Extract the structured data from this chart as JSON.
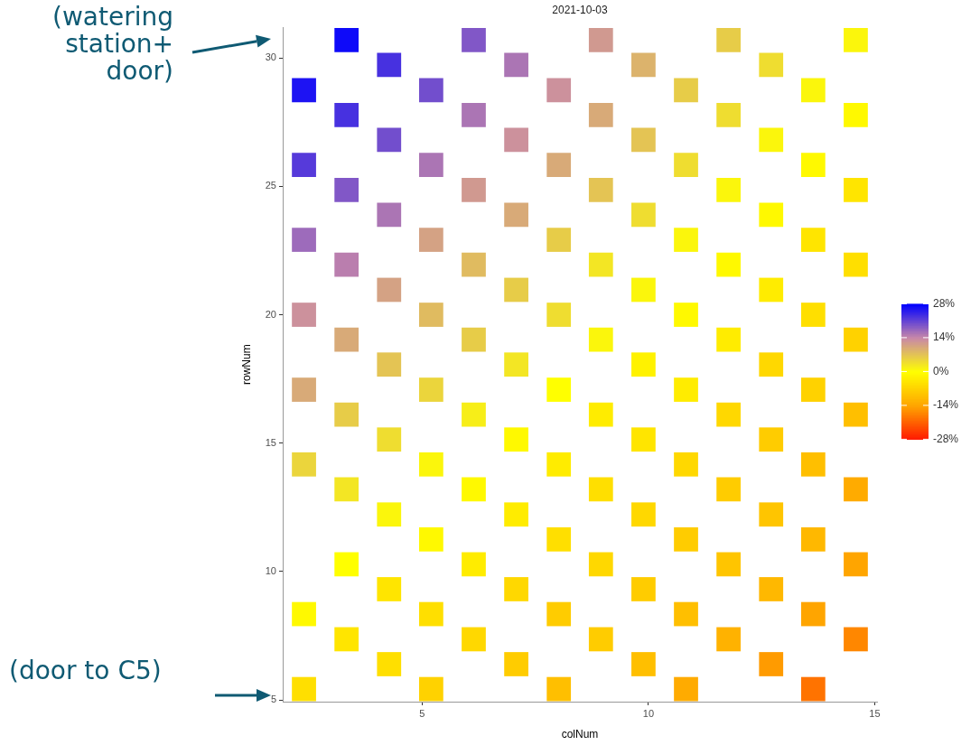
{
  "chart_data": {
    "type": "scatter",
    "title": "2021-10-03",
    "xlabel": "colNum",
    "ylabel": "rowNum",
    "marker": "square",
    "xlim": [
      1.92,
      15.05
    ],
    "ylim": [
      4.93,
      31.19
    ],
    "xticks": [
      5,
      10,
      15
    ],
    "yticks": [
      5,
      10,
      15,
      20,
      25,
      30
    ],
    "clim": [
      -28,
      28
    ],
    "cticks": [
      {
        "value": 28,
        "label": "28%"
      },
      {
        "value": 14,
        "label": "14%"
      },
      {
        "value": 0,
        "label": "0%"
      },
      {
        "value": -14,
        "label": "-14%"
      },
      {
        "value": -28,
        "label": "-28%"
      }
    ],
    "annotations": [
      "(watering station+ door)",
      "(door to C5)"
    ],
    "x": [
      3.33,
      6.14,
      8.95,
      11.77,
      14.58,
      4.27,
      7.08,
      9.89,
      12.71,
      2.39,
      5.2,
      8.02,
      10.83,
      13.64,
      3.33,
      6.14,
      8.95,
      11.77,
      14.58,
      4.27,
      7.08,
      9.89,
      12.71,
      2.39,
      5.2,
      8.02,
      10.83,
      13.64,
      3.33,
      6.14,
      8.95,
      11.77,
      14.58,
      4.27,
      7.08,
      9.89,
      12.71,
      2.39,
      5.2,
      8.02,
      10.83,
      13.64,
      3.33,
      6.14,
      8.95,
      11.77,
      14.58,
      4.27,
      7.08,
      9.89,
      12.71,
      2.39,
      5.2,
      8.02,
      10.83,
      13.64,
      3.33,
      6.14,
      8.95,
      11.77,
      14.58,
      4.27,
      7.08,
      9.89,
      12.71,
      2.39,
      5.2,
      8.02,
      10.83,
      13.64,
      3.33,
      6.14,
      8.95,
      11.77,
      14.58,
      4.27,
      7.08,
      9.89,
      12.71,
      2.39,
      5.2,
      8.02,
      10.83,
      13.64,
      3.33,
      6.14,
      8.95,
      11.77,
      14.58,
      4.27,
      7.08,
      9.89,
      12.71,
      5.2,
      8.02,
      10.83,
      13.64,
      3.33,
      6.14,
      8.95,
      11.77,
      14.58,
      4.27,
      7.08,
      9.89,
      12.71,
      2.39,
      5.2,
      8.02,
      10.83,
      13.64,
      3.33,
      6.14,
      8.95,
      11.77,
      14.58,
      4.27,
      7.08,
      9.89,
      12.71,
      2.39,
      5.2,
      8.02,
      10.83,
      13.64
    ],
    "values": [
      30.7,
      30.7,
      30.7,
      30.7,
      30.7,
      29.73,
      29.73,
      29.73,
      29.73,
      28.75,
      28.75,
      28.75,
      28.75,
      28.75,
      27.78,
      27.78,
      27.78,
      27.78,
      27.78,
      26.81,
      26.81,
      26.81,
      26.81,
      25.84,
      25.84,
      25.84,
      25.84,
      25.84,
      24.86,
      24.86,
      24.86,
      24.86,
      24.86,
      23.89,
      23.89,
      23.89,
      23.89,
      22.92,
      22.92,
      22.92,
      22.92,
      22.92,
      21.95,
      21.95,
      21.95,
      21.95,
      21.95,
      20.97,
      20.97,
      20.97,
      20.97,
      20.0,
      20.0,
      20.0,
      20.0,
      20.0,
      19.03,
      19.03,
      19.03,
      19.03,
      19.03,
      18.06,
      18.06,
      18.06,
      18.06,
      17.08,
      17.08,
      17.08,
      17.08,
      17.08,
      16.11,
      16.11,
      16.11,
      16.11,
      16.11,
      15.14,
      15.14,
      15.14,
      15.14,
      14.17,
      14.17,
      14.17,
      14.17,
      14.17,
      13.2,
      13.2,
      13.2,
      13.2,
      13.2,
      12.22,
      12.22,
      12.22,
      12.22,
      11.25,
      11.25,
      11.25,
      11.25,
      10.28,
      10.28,
      10.28,
      10.28,
      10.28,
      9.31,
      9.31,
      9.31,
      9.31,
      8.34,
      8.34,
      8.34,
      8.34,
      8.34,
      7.36,
      7.36,
      7.36,
      7.36,
      7.36,
      6.39,
      6.39,
      6.39,
      6.39,
      5.42,
      5.42,
      5.42,
      5.42,
      5.42
    ],
    "cvalues": [
      27,
      19,
      12,
      6,
      1,
      23,
      16,
      9,
      4,
      26,
      20,
      13,
      6,
      1,
      23,
      16,
      10,
      4,
      -1,
      20,
      13,
      7,
      1,
      22,
      16,
      10,
      4,
      -1,
      19,
      12,
      7,
      1,
      -4,
      16,
      10,
      4,
      -1,
      17,
      11,
      6,
      1,
      -4,
      15,
      8,
      3,
      -1,
      -5,
      11,
      6,
      1,
      -3,
      13,
      8,
      4,
      -1,
      -5,
      10,
      6,
      1,
      -3,
      -7,
      7,
      3,
      -2,
      -6,
      10,
      5,
      0,
      -3,
      -7,
      6,
      2,
      -3,
      -6,
      -10,
      4,
      -1,
      -4,
      -8,
      5,
      1,
      -3,
      -6,
      -10,
      3,
      -1,
      -5,
      -8,
      -13,
      1,
      -3,
      -6,
      -9,
      -1,
      -5,
      -8,
      -11,
      0,
      -3,
      -6,
      -9,
      -14,
      -4,
      -6,
      -8,
      -11,
      -1,
      -5,
      -8,
      -10,
      -14,
      -4,
      -6,
      -8,
      -12,
      -17,
      -5,
      -8,
      -10,
      -15,
      -5,
      -7,
      -10,
      -13,
      -19
    ]
  }
}
